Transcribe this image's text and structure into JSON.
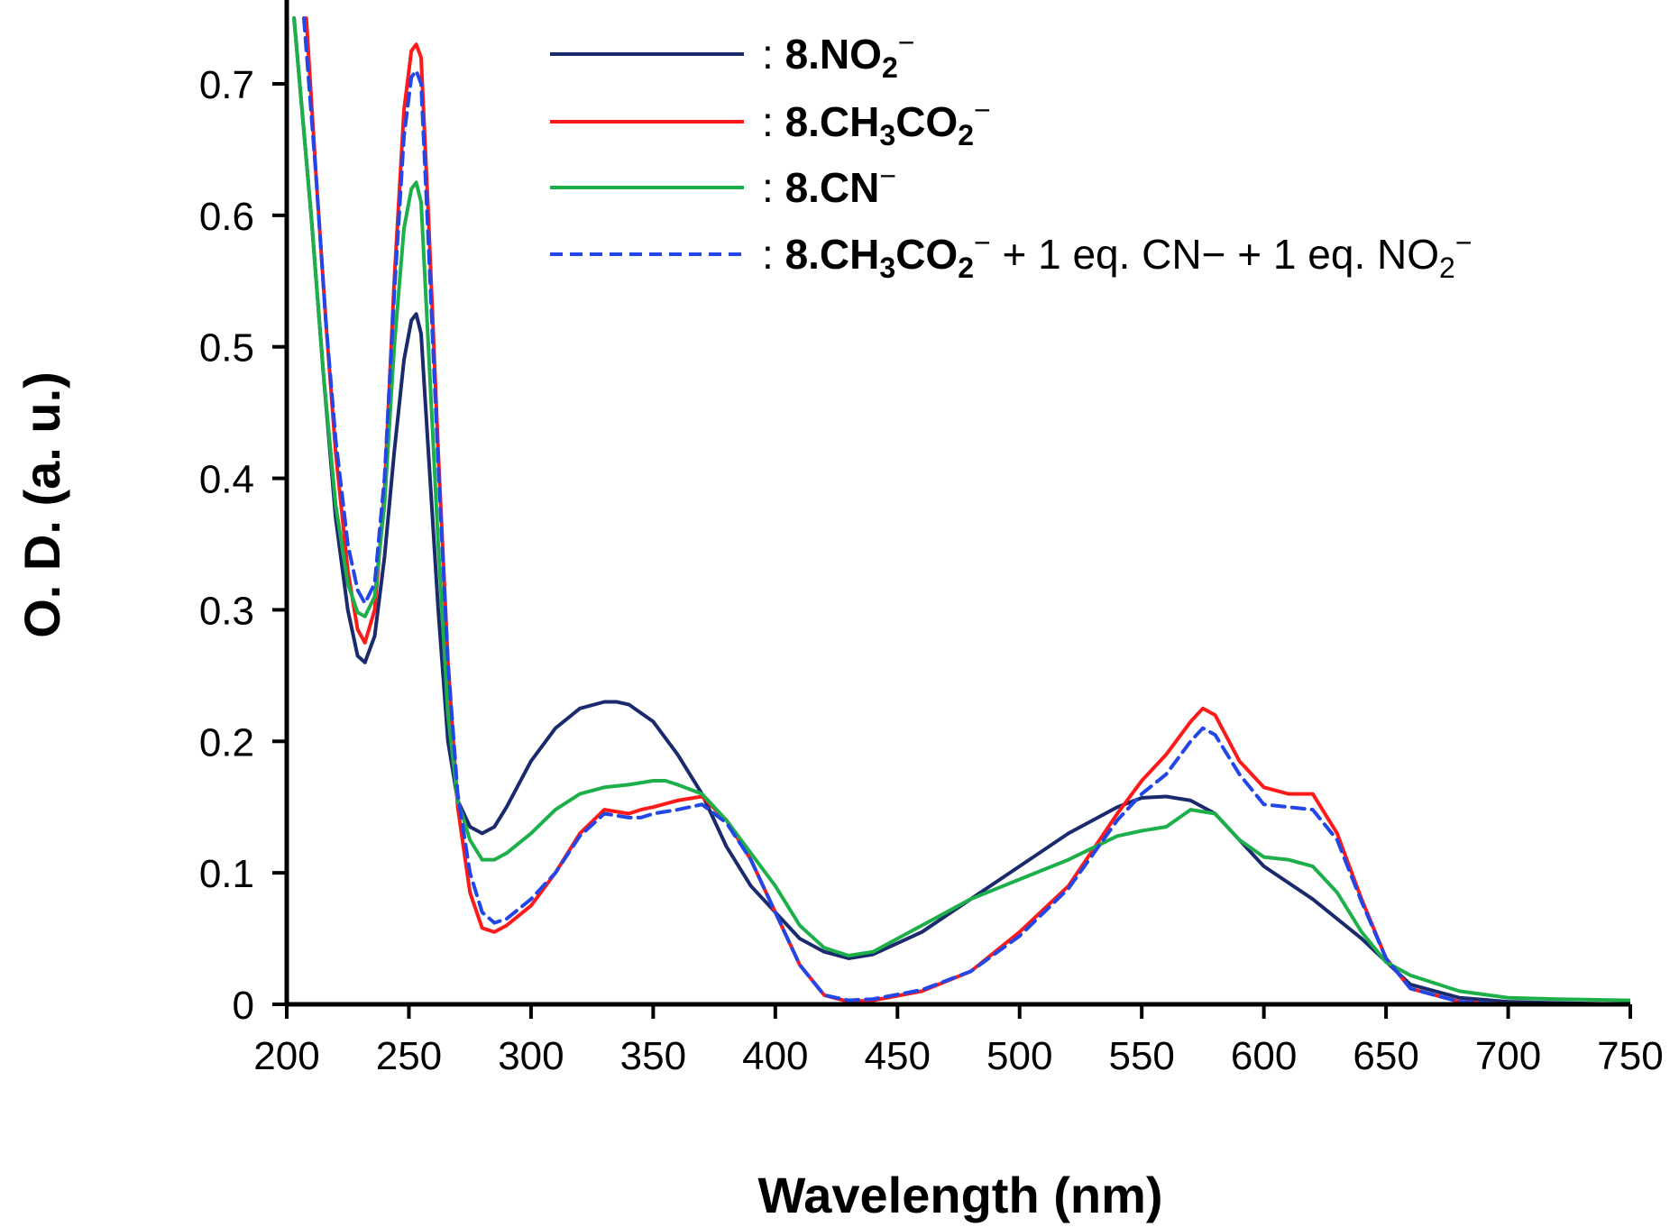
{
  "chart_data": {
    "type": "line",
    "title": "",
    "xlabel": "Wavelength (nm)",
    "ylabel": "O. D. (a. u.)",
    "xlim": [
      200,
      750
    ],
    "ylim": [
      0,
      0.75
    ],
    "xticks": [
      "200",
      "250",
      "300",
      "350",
      "400",
      "450",
      "500",
      "550",
      "600",
      "650",
      "700",
      "750"
    ],
    "yticks": [
      "0",
      "0.1",
      "0.2",
      "0.3",
      "0.4",
      "0.5",
      "0.6",
      "0.7"
    ],
    "legend_position": "top-right",
    "series": [
      {
        "name": ": 8.NO2⁻",
        "legend": {
          "prefix": ":",
          "compound": "8",
          "anion": ".NO",
          "sub": "2",
          "sup": "−",
          "tail": ""
        },
        "color": "#1a2a6c",
        "dash": "solid",
        "x": [
          203,
          210,
          215,
          220,
          225,
          229,
          232,
          236,
          240,
          244,
          248,
          251,
          253,
          255,
          258,
          262,
          266,
          270,
          275,
          280,
          285,
          290,
          300,
          310,
          320,
          330,
          335,
          340,
          350,
          360,
          370,
          380,
          390,
          400,
          410,
          420,
          430,
          440,
          460,
          480,
          500,
          520,
          540,
          550,
          560,
          570,
          580,
          590,
          600,
          620,
          640,
          660,
          680,
          700,
          720,
          750
        ],
        "y": [
          0.75,
          0.6,
          0.48,
          0.37,
          0.3,
          0.265,
          0.26,
          0.28,
          0.34,
          0.42,
          0.49,
          0.52,
          0.525,
          0.51,
          0.42,
          0.3,
          0.2,
          0.155,
          0.135,
          0.13,
          0.135,
          0.15,
          0.185,
          0.21,
          0.225,
          0.23,
          0.23,
          0.228,
          0.215,
          0.19,
          0.16,
          0.12,
          0.09,
          0.07,
          0.05,
          0.04,
          0.035,
          0.038,
          0.055,
          0.08,
          0.105,
          0.13,
          0.15,
          0.157,
          0.158,
          0.155,
          0.145,
          0.125,
          0.105,
          0.08,
          0.05,
          0.015,
          0.005,
          0.002,
          0.001,
          0.0
        ]
      },
      {
        "name": ": 8.CH3CO2⁻",
        "legend": {
          "prefix": ":",
          "compound": "8",
          "anion": ".CH",
          "sub": "3",
          "anion2": "CO",
          "sub2": "2",
          "sup": "−",
          "tail": ""
        },
        "color": "#ff1a1a",
        "dash": "solid",
        "x": [
          208,
          212,
          216,
          220,
          225,
          229,
          232,
          236,
          240,
          244,
          248,
          251,
          253,
          255,
          258,
          262,
          266,
          270,
          275,
          280,
          285,
          290,
          300,
          310,
          320,
          330,
          340,
          345,
          350,
          360,
          370,
          380,
          390,
          400,
          410,
          420,
          430,
          440,
          460,
          480,
          500,
          520,
          540,
          550,
          560,
          570,
          575,
          580,
          590,
          600,
          610,
          620,
          630,
          640,
          650,
          660,
          680,
          700,
          750
        ],
        "y": [
          0.75,
          0.63,
          0.52,
          0.42,
          0.33,
          0.285,
          0.275,
          0.3,
          0.39,
          0.55,
          0.68,
          0.725,
          0.73,
          0.72,
          0.6,
          0.42,
          0.26,
          0.15,
          0.085,
          0.058,
          0.055,
          0.06,
          0.075,
          0.1,
          0.13,
          0.148,
          0.145,
          0.148,
          0.15,
          0.155,
          0.158,
          0.14,
          0.11,
          0.07,
          0.03,
          0.007,
          0.002,
          0.003,
          0.01,
          0.025,
          0.055,
          0.09,
          0.145,
          0.17,
          0.19,
          0.215,
          0.225,
          0.22,
          0.185,
          0.165,
          0.16,
          0.16,
          0.13,
          0.08,
          0.035,
          0.012,
          0.002,
          0.0,
          0.0
        ]
      },
      {
        "name": ": 8.CN⁻",
        "legend": {
          "prefix": ":",
          "compound": "8",
          "anion": ".CN",
          "sub": "",
          "sup": "−",
          "tail": ""
        },
        "color": "#1db04a",
        "dash": "solid",
        "x": [
          203,
          210,
          215,
          220,
          225,
          229,
          232,
          236,
          240,
          244,
          248,
          251,
          253,
          255,
          258,
          262,
          266,
          270,
          275,
          280,
          285,
          290,
          300,
          310,
          320,
          330,
          340,
          350,
          355,
          360,
          370,
          380,
          390,
          400,
          410,
          420,
          430,
          440,
          460,
          480,
          500,
          520,
          540,
          550,
          560,
          570,
          580,
          590,
          600,
          610,
          620,
          630,
          640,
          650,
          660,
          680,
          700,
          720,
          750
        ],
        "y": [
          0.75,
          0.6,
          0.48,
          0.38,
          0.32,
          0.298,
          0.295,
          0.31,
          0.38,
          0.5,
          0.59,
          0.62,
          0.625,
          0.61,
          0.5,
          0.35,
          0.22,
          0.155,
          0.125,
          0.11,
          0.11,
          0.115,
          0.13,
          0.148,
          0.16,
          0.165,
          0.167,
          0.17,
          0.17,
          0.167,
          0.16,
          0.14,
          0.115,
          0.09,
          0.06,
          0.043,
          0.037,
          0.04,
          0.06,
          0.08,
          0.095,
          0.11,
          0.128,
          0.132,
          0.135,
          0.148,
          0.145,
          0.125,
          0.112,
          0.11,
          0.105,
          0.085,
          0.055,
          0.032,
          0.022,
          0.01,
          0.005,
          0.004,
          0.003
        ]
      },
      {
        "name": ": 8.CH3CO2⁻ + 1 eq. CN⁻ + 1 eq. NO2⁻",
        "legend": {
          "prefix": ":",
          "compound": "8",
          "anion": ".CH",
          "sub": "3",
          "anion2": "CO",
          "sub2": "2",
          "sup": "−",
          "tail": " + 1 eq. CN− + 1 eq. NO",
          "tail_sub": "2",
          "tail_sup": "−"
        },
        "color": "#2346e6",
        "dash": "dashed",
        "x": [
          207,
          212,
          216,
          220,
          225,
          229,
          232,
          236,
          240,
          244,
          248,
          251,
          253,
          255,
          258,
          262,
          266,
          270,
          275,
          280,
          285,
          290,
          300,
          310,
          320,
          330,
          340,
          345,
          350,
          360,
          370,
          380,
          390,
          400,
          410,
          420,
          430,
          440,
          460,
          480,
          500,
          520,
          540,
          550,
          560,
          570,
          575,
          580,
          590,
          600,
          610,
          620,
          630,
          640,
          650,
          660,
          680,
          700,
          750
        ],
        "y": [
          0.75,
          0.63,
          0.52,
          0.43,
          0.35,
          0.315,
          0.305,
          0.32,
          0.4,
          0.54,
          0.66,
          0.705,
          0.71,
          0.7,
          0.58,
          0.41,
          0.26,
          0.16,
          0.1,
          0.07,
          0.062,
          0.065,
          0.08,
          0.1,
          0.128,
          0.145,
          0.142,
          0.142,
          0.145,
          0.148,
          0.152,
          0.138,
          0.11,
          0.07,
          0.03,
          0.007,
          0.003,
          0.004,
          0.011,
          0.025,
          0.052,
          0.088,
          0.14,
          0.16,
          0.175,
          0.2,
          0.21,
          0.205,
          0.175,
          0.152,
          0.15,
          0.148,
          0.125,
          0.078,
          0.035,
          0.012,
          0.002,
          0.0,
          0.0
        ]
      }
    ]
  }
}
